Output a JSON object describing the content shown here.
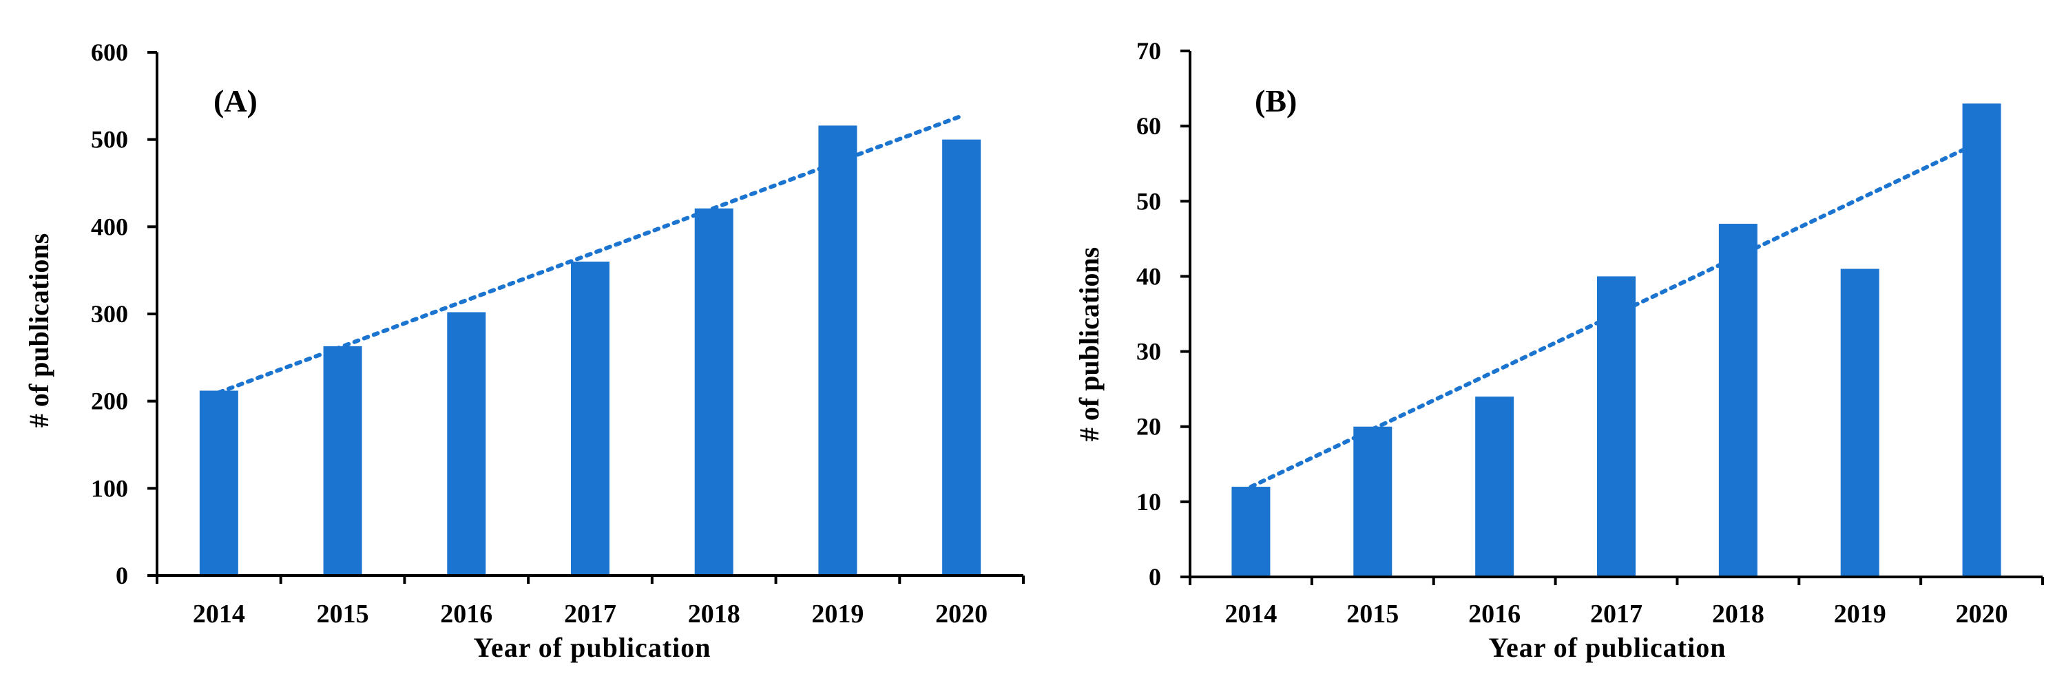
{
  "colors": {
    "bar": "#1b75d0",
    "trend": "#1b75d0",
    "axis": "#000000"
  },
  "chart_data": [
    {
      "type": "bar",
      "panel_label": "(A)",
      "categories": [
        "2014",
        "2015",
        "2016",
        "2017",
        "2018",
        "2019",
        "2020"
      ],
      "values": [
        212,
        263,
        302,
        360,
        421,
        516,
        500
      ],
      "xlabel": "Year of publication",
      "ylabel": "# of publications",
      "ylim": [
        0,
        600
      ],
      "yticks": [
        "0",
        "100",
        "200",
        "300",
        "400",
        "500",
        "600"
      ],
      "trendline": {
        "style": "dotted",
        "start": 210,
        "end": 527
      },
      "grid": false,
      "legend": "none"
    },
    {
      "type": "bar",
      "panel_label": "(B)",
      "categories": [
        "2014",
        "2015",
        "2016",
        "2017",
        "2018",
        "2019",
        "2020"
      ],
      "values": [
        12,
        20,
        24,
        40,
        47,
        41,
        63
      ],
      "xlabel": "Year of publication",
      "ylabel": "# of publications",
      "ylim": [
        0,
        70
      ],
      "yticks": [
        "0",
        "10",
        "20",
        "30",
        "40",
        "50",
        "60",
        "70"
      ],
      "trendline": {
        "style": "dotted",
        "start": 12,
        "end": 58
      },
      "grid": false,
      "legend": "none"
    }
  ]
}
